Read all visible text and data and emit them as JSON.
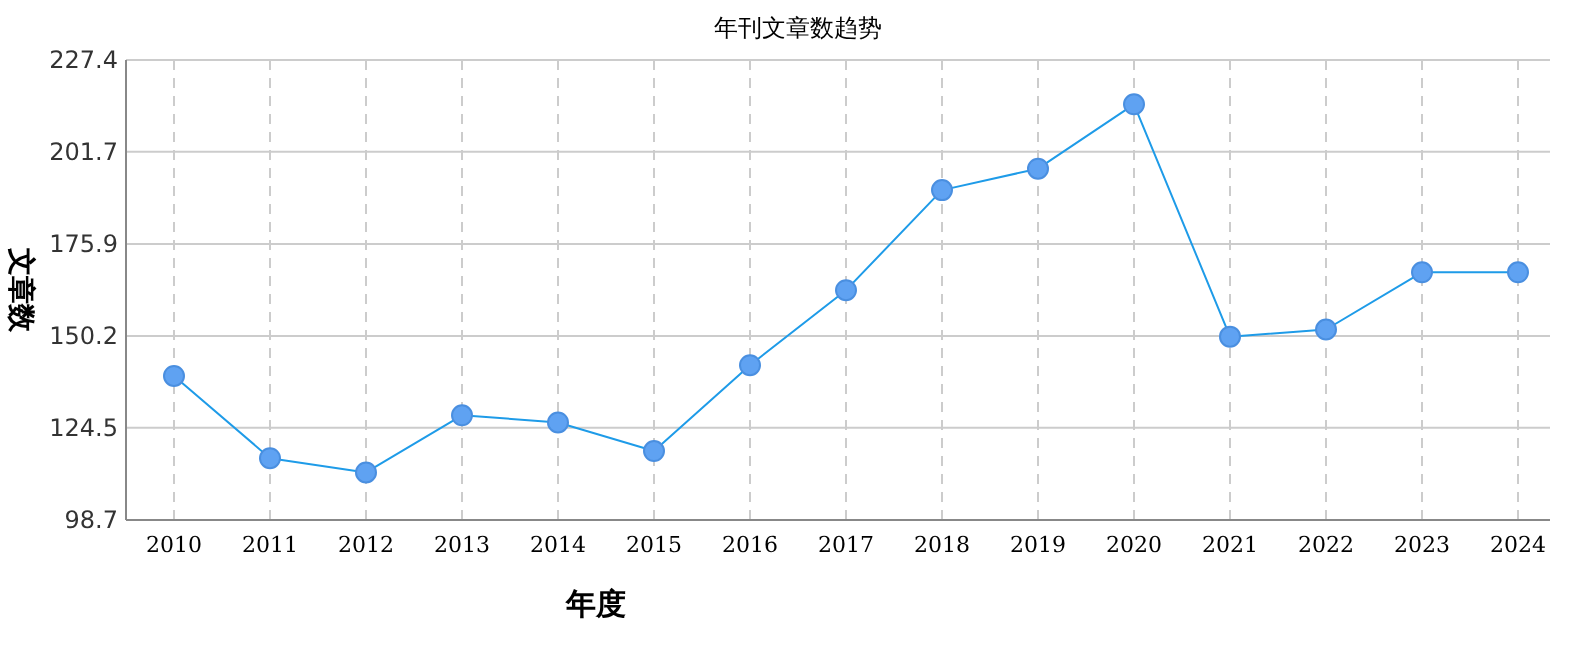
{
  "chart_data": {
    "type": "line",
    "title": "年刊文章数趋势",
    "xlabel": "年度",
    "ylabel": "文章数",
    "categories": [
      "2010",
      "2011",
      "2012",
      "2013",
      "2014",
      "2015",
      "2016",
      "2017",
      "2018",
      "2019",
      "2020",
      "2021",
      "2022",
      "2023",
      "2024"
    ],
    "series": [
      {
        "color": "#1e9be8",
        "values": [
          139,
          116,
          112,
          128,
          126,
          118,
          142,
          163,
          191,
          197,
          215,
          150,
          152,
          168,
          168
        ]
      }
    ],
    "ylim": [
      98.7,
      227.4
    ],
    "yticks": [
      98.7,
      124.5,
      150.2,
      175.9,
      201.7,
      227.4
    ],
    "grid": true,
    "marker": "circle"
  }
}
